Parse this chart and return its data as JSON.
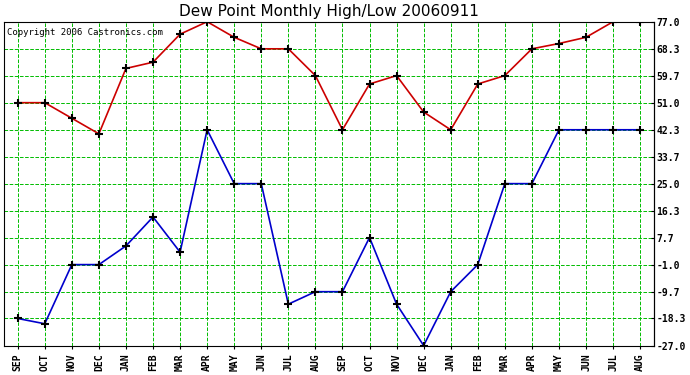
{
  "title": "Dew Point Monthly High/Low 20060911",
  "copyright": "Copyright 2006 Castronics.com",
  "months": [
    "SEP",
    "OCT",
    "NOV",
    "DEC",
    "JAN",
    "FEB",
    "MAR",
    "APR",
    "MAY",
    "JUN",
    "JUL",
    "AUG",
    "SEP",
    "OCT",
    "NOV",
    "DEC",
    "JAN",
    "FEB",
    "MAR",
    "APR",
    "MAY",
    "JUN",
    "JUL",
    "AUG"
  ],
  "high_vals": [
    51.0,
    51.0,
    46.0,
    41.0,
    62.0,
    64.0,
    73.0,
    77.0,
    72.0,
    68.3,
    68.3,
    59.7,
    42.3,
    57.0,
    59.7,
    48.0,
    42.3,
    57.0,
    59.7,
    68.3,
    70.0,
    72.0,
    77.0,
    77.0
  ],
  "low_vals": [
    -18.3,
    -20.0,
    -1.0,
    -1.0,
    5.0,
    14.3,
    3.0,
    42.3,
    25.0,
    25.0,
    -13.7,
    -9.7,
    -9.7,
    7.7,
    -13.7,
    -27.0,
    -9.7,
    -1.0,
    25.0,
    25.0,
    42.3,
    42.3,
    42.3,
    42.3
  ],
  "yticks": [
    77.0,
    68.3,
    59.7,
    51.0,
    42.3,
    33.7,
    25.0,
    16.3,
    7.7,
    -1.0,
    -9.7,
    -18.3,
    -27.0
  ],
  "ymin": -27.0,
  "ymax": 77.0,
  "high_color": "#cc0000",
  "low_color": "#0000cc",
  "grid_color": "#00bb00",
  "background_color": "#ffffff",
  "title_fontsize": 11,
  "tick_fontsize": 7,
  "copyright_fontsize": 6.5
}
